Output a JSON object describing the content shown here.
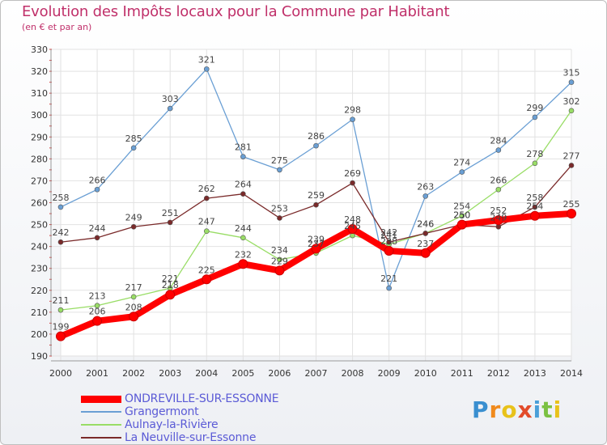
{
  "header": {
    "title": "Evolution des Impôts locaux pour la Commune par Habitant",
    "subtitle": "(en € et par an)"
  },
  "logo": {
    "text": "Proxiti"
  },
  "chart_data": {
    "type": "line",
    "x": [
      "2000",
      "2001",
      "2002",
      "2003",
      "2004",
      "2005",
      "2006",
      "2007",
      "2008",
      "2009",
      "2010",
      "2011",
      "2012",
      "2013",
      "2014"
    ],
    "ylim": [
      190,
      330
    ],
    "yticks": [
      190,
      200,
      210,
      220,
      230,
      240,
      250,
      260,
      270,
      280,
      290,
      300,
      310,
      320,
      330
    ],
    "grid": true,
    "legend_position": "bottom-left",
    "series": [
      {
        "name": "ONDREVILLE-SUR-ESSONNE",
        "color": "#ff0000",
        "thick": true,
        "values": [
          199,
          206,
          208,
          218,
          225,
          232,
          229,
          239,
          248,
          238,
          237,
          250,
          252,
          254,
          255
        ]
      },
      {
        "name": "Grangermont",
        "color": "#6a9fd4",
        "thick": false,
        "values": [
          258,
          266,
          285,
          303,
          321,
          281,
          275,
          286,
          298,
          221,
          263,
          274,
          284,
          299,
          315
        ]
      },
      {
        "name": "Aulnay-la-Rivière",
        "color": "#99dd66",
        "thick": false,
        "values": [
          211,
          213,
          217,
          221,
          247,
          244,
          234,
          237,
          245,
          241,
          246,
          254,
          266,
          278,
          302
        ]
      },
      {
        "name": "La Neuville-sur-Essonne",
        "color": "#7a2a2a",
        "thick": false,
        "values": [
          242,
          244,
          249,
          251,
          262,
          264,
          253,
          259,
          269,
          242,
          246,
          250,
          249,
          258,
          277
        ]
      }
    ]
  }
}
